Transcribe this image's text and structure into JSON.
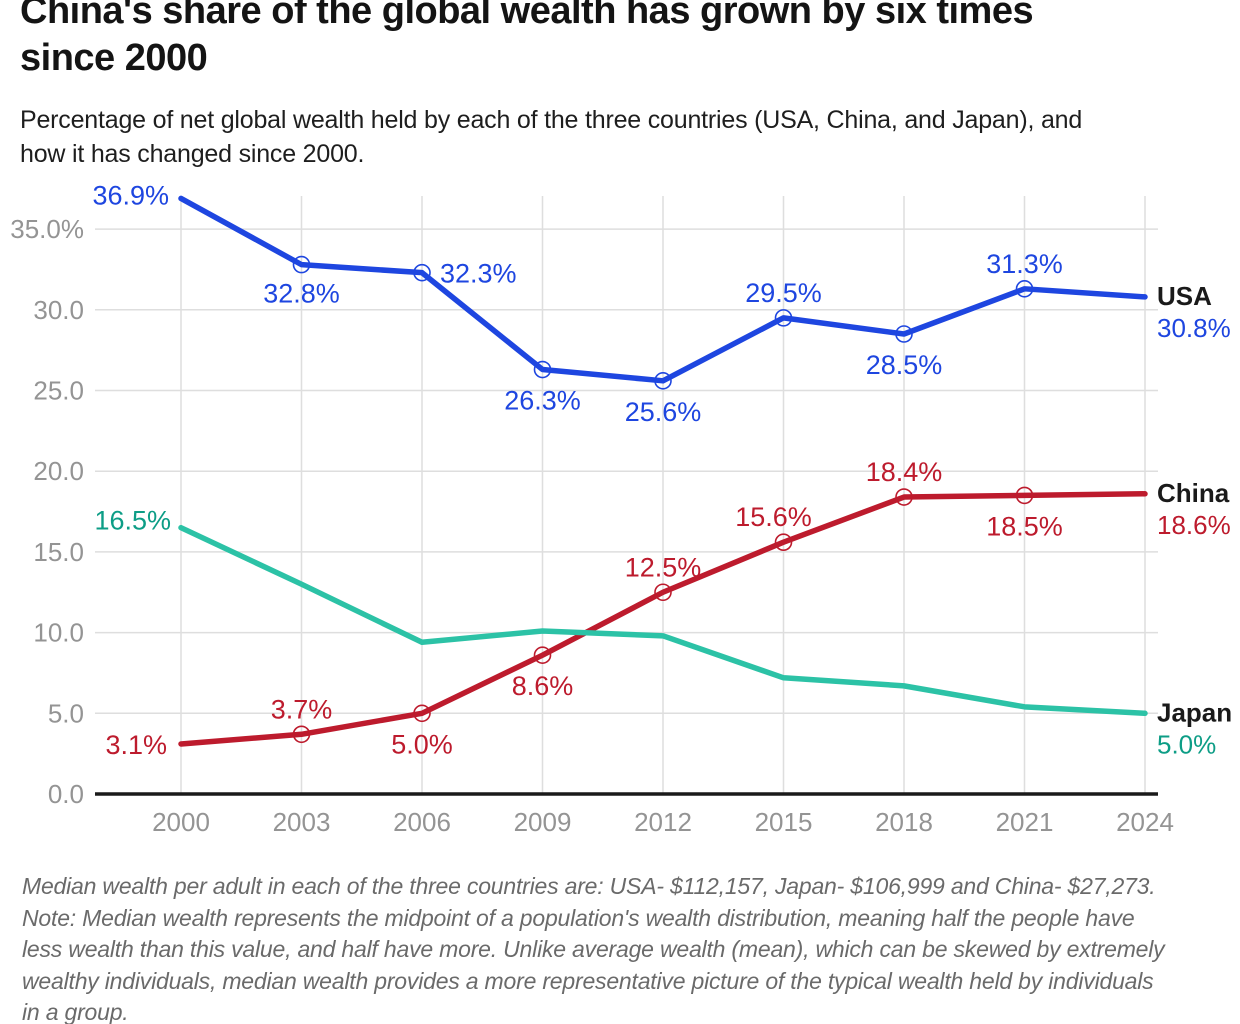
{
  "header": {
    "title_lines": [
      "China's share of the global wealth has grown by six times",
      "since 2000"
    ],
    "subtitle_lines": [
      "Percentage of net global wealth held by each of the three countries (USA, China, and Japan), and",
      "how it has changed since 2000."
    ]
  },
  "footnote_lines": [
    "Median wealth per adult in each of the three countries are: USA- $112,157, Japan- $106,999 and China- $27,273.",
    "Note: Median wealth represents the midpoint of a population's wealth distribution, meaning half the people have",
    "less wealth than this value, and half have more. Unlike average wealth (mean), which can be skewed by extremely",
    "wealthy individuals, median wealth provides a more representative picture of the typical wealth held by individuals",
    "in a group."
  ],
  "chart_data": {
    "type": "line",
    "title": "China's share of the global wealth has grown by six times since 2000",
    "xlabel": "",
    "ylabel": "",
    "x": [
      2000,
      2003,
      2006,
      2009,
      2012,
      2015,
      2018,
      2021,
      2024
    ],
    "ylim": [
      0,
      37.5
    ],
    "grid": true,
    "legend_position": "right-end-of-lines",
    "yticks": [
      {
        "value": 0,
        "label": "0.0"
      },
      {
        "value": 5,
        "label": "5.0"
      },
      {
        "value": 10,
        "label": "10.0"
      },
      {
        "value": 15,
        "label": "15.0"
      },
      {
        "value": 20,
        "label": "20.0"
      },
      {
        "value": 25,
        "label": "25.0"
      },
      {
        "value": 30,
        "label": "30.0"
      },
      {
        "value": 35,
        "label": "35.0%"
      }
    ],
    "colors": {
      "grid": "#dedede",
      "axis": "#1a1a1a",
      "tick_text": "#949494",
      "series_name_text": "#1a1a1a"
    },
    "series": [
      {
        "name": "USA",
        "color": "#1e46e0",
        "label_color": "#1e46e0",
        "values": [
          36.9,
          32.8,
          32.3,
          26.3,
          25.6,
          29.5,
          28.5,
          31.3,
          30.8
        ],
        "marker_indexes": [
          1,
          2,
          3,
          4,
          5,
          6,
          7
        ],
        "point_labels": [
          {
            "i": 0,
            "text": "36.9%",
            "anchor": "end",
            "dx": -12,
            "dy": 6
          },
          {
            "i": 1,
            "text": "32.8%",
            "anchor": "middle",
            "dx": 0,
            "dy": 38
          },
          {
            "i": 2,
            "text": "32.3%",
            "anchor": "start",
            "dx": 18,
            "dy": 10
          },
          {
            "i": 3,
            "text": "26.3%",
            "anchor": "middle",
            "dx": 0,
            "dy": 40
          },
          {
            "i": 4,
            "text": "25.6%",
            "anchor": "middle",
            "dx": 0,
            "dy": 40
          },
          {
            "i": 5,
            "text": "29.5%",
            "anchor": "middle",
            "dx": 0,
            "dy": -16
          },
          {
            "i": 6,
            "text": "28.5%",
            "anchor": "middle",
            "dx": 0,
            "dy": 40
          },
          {
            "i": 7,
            "text": "31.3%",
            "anchor": "middle",
            "dx": 0,
            "dy": -16
          }
        ],
        "end_value": "30.8%"
      },
      {
        "name": "China",
        "color": "#bd1b2d",
        "label_color": "#bd1b2d",
        "values": [
          3.1,
          3.7,
          5.0,
          8.6,
          12.5,
          15.6,
          18.4,
          18.5,
          18.6
        ],
        "marker_indexes": [
          1,
          2,
          3,
          4,
          5,
          6,
          7
        ],
        "point_labels": [
          {
            "i": 0,
            "text": "3.1%",
            "anchor": "end",
            "dx": -14,
            "dy": 10
          },
          {
            "i": 1,
            "text": "3.7%",
            "anchor": "middle",
            "dx": 0,
            "dy": -16
          },
          {
            "i": 2,
            "text": "5.0%",
            "anchor": "middle",
            "dx": 0,
            "dy": 40
          },
          {
            "i": 3,
            "text": "8.6%",
            "anchor": "middle",
            "dx": 0,
            "dy": 40
          },
          {
            "i": 4,
            "text": "12.5%",
            "anchor": "middle",
            "dx": 0,
            "dy": -16
          },
          {
            "i": 5,
            "text": "15.6%",
            "anchor": "middle",
            "dx": -10,
            "dy": -16
          },
          {
            "i": 6,
            "text": "18.4%",
            "anchor": "middle",
            "dx": 0,
            "dy": -16
          },
          {
            "i": 7,
            "text": "18.5%",
            "anchor": "middle",
            "dx": 0,
            "dy": 40
          }
        ],
        "end_value": "18.6%"
      },
      {
        "name": "Japan",
        "color": "#2cc2a6",
        "label_color": "#0d9d86",
        "values": [
          16.5,
          13.0,
          9.4,
          10.1,
          9.8,
          7.2,
          6.7,
          5.4,
          5.0
        ],
        "marker_indexes": [],
        "point_labels": [
          {
            "i": 0,
            "text": "16.5%",
            "anchor": "end",
            "dx": -10,
            "dy": 2
          }
        ],
        "end_value": "5.0%"
      }
    ]
  }
}
